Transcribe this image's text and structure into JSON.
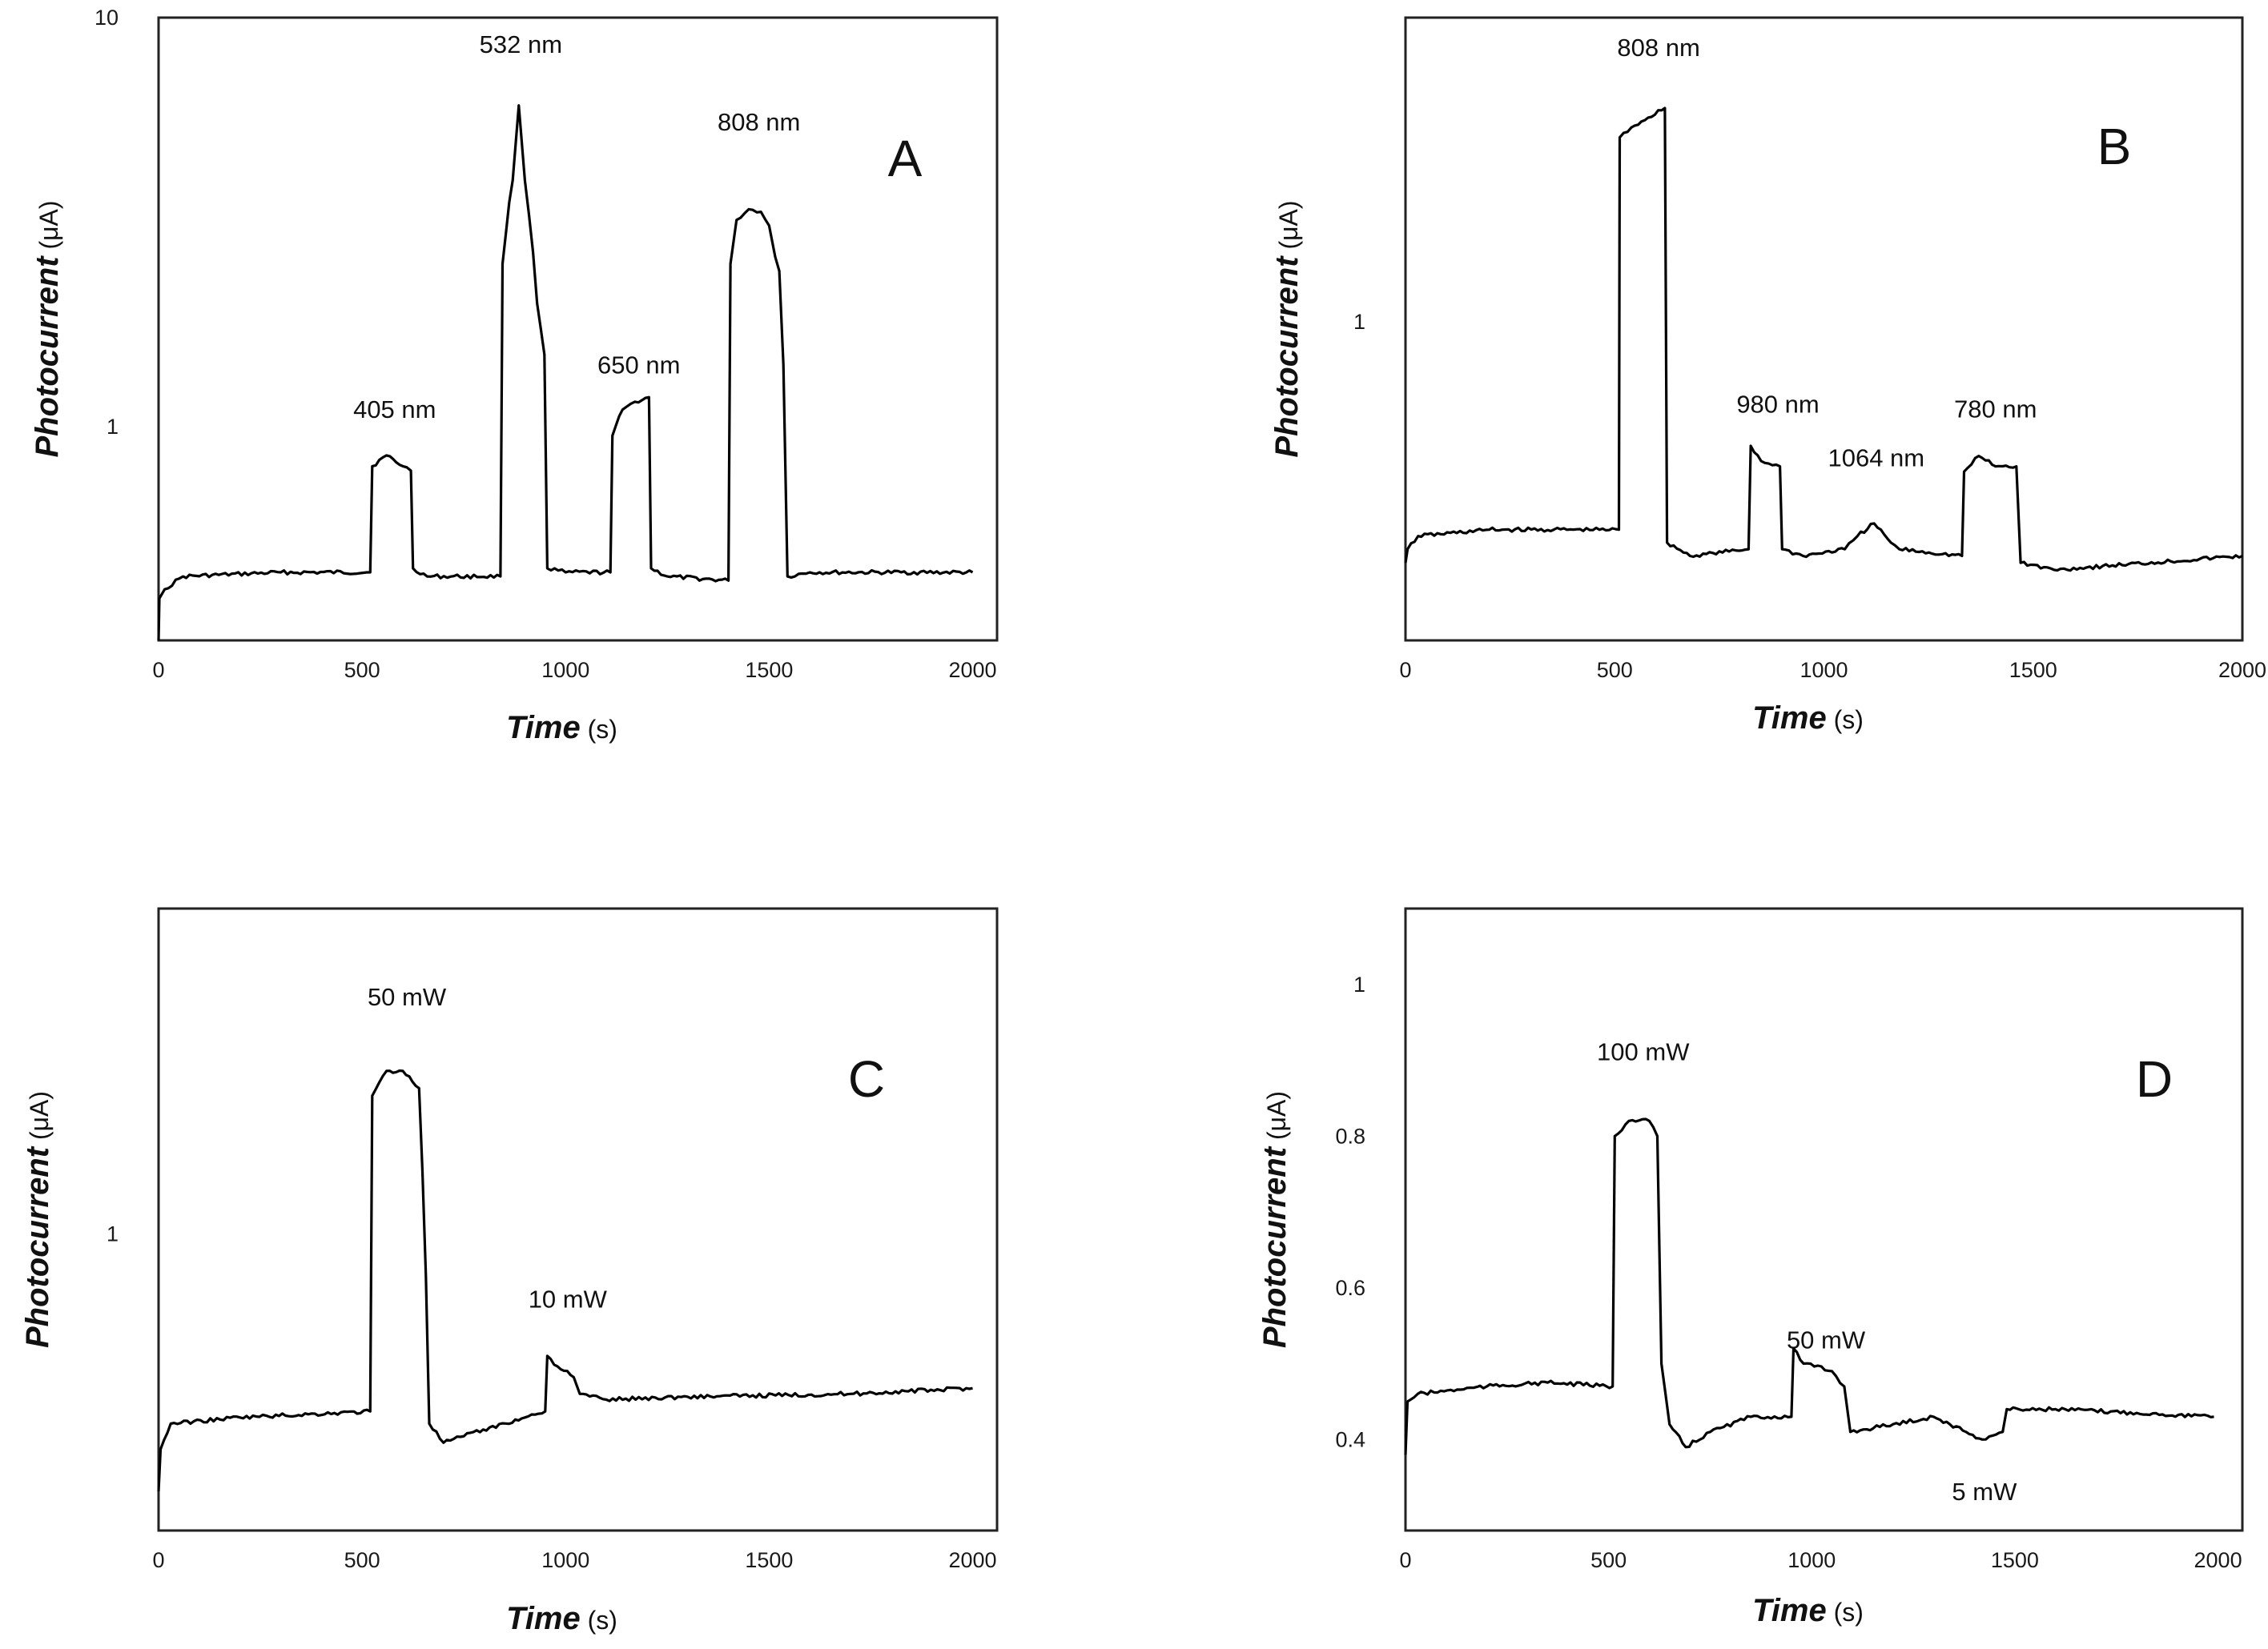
{
  "chart_data": [
    {
      "id": "A",
      "type": "line",
      "panel_label": "A",
      "xlabel": {
        "main": "Time",
        "unit": " (s)"
      },
      "ylabel": {
        "main": "Photocurrent",
        "unit": " (μA)"
      },
      "yscale": "log",
      "xlim": [
        0,
        2060
      ],
      "ylim": [
        0.3,
        10
      ],
      "xticks": [
        0,
        500,
        1000,
        1500,
        2000
      ],
      "xtick_labels": [
        "0",
        "500",
        "1000",
        "1500",
        "2000"
      ],
      "yticks": [
        1,
        10
      ],
      "ytick_labels": [
        "1",
        "10"
      ],
      "annotations": [
        {
          "text": "405 nm",
          "x": 580,
          "y": 1.05
        },
        {
          "text": "532 nm",
          "x": 890,
          "y": 8.2
        },
        {
          "text": "650 nm",
          "x": 1180,
          "y": 1.35
        },
        {
          "text": "808 nm",
          "x": 1475,
          "y": 5.3
        }
      ],
      "series": [
        {
          "name": "photocurrent",
          "points": [
            [
              0,
              0.3
            ],
            [
              2,
              0.38
            ],
            [
              15,
              0.4
            ],
            [
              60,
              0.43
            ],
            [
              300,
              0.44
            ],
            [
              520,
              0.44
            ],
            [
              525,
              0.8
            ],
            [
              560,
              0.85
            ],
            [
              600,
              0.8
            ],
            [
              620,
              0.78
            ],
            [
              625,
              0.45
            ],
            [
              660,
              0.43
            ],
            [
              840,
              0.43
            ],
            [
              845,
              2.5
            ],
            [
              870,
              4.0
            ],
            [
              885,
              6.1
            ],
            [
              900,
              4.0
            ],
            [
              930,
              2.0
            ],
            [
              948,
              1.5
            ],
            [
              955,
              0.45
            ],
            [
              1000,
              0.44
            ],
            [
              1110,
              0.44
            ],
            [
              1115,
              0.95
            ],
            [
              1140,
              1.1
            ],
            [
              1170,
              1.15
            ],
            [
              1205,
              1.18
            ],
            [
              1210,
              0.45
            ],
            [
              1250,
              0.43
            ],
            [
              1400,
              0.42
            ],
            [
              1405,
              2.5
            ],
            [
              1420,
              3.2
            ],
            [
              1450,
              3.4
            ],
            [
              1480,
              3.35
            ],
            [
              1500,
              3.1
            ],
            [
              1515,
              2.6
            ],
            [
              1525,
              2.4
            ],
            [
              1545,
              0.43
            ],
            [
              1600,
              0.44
            ],
            [
              2000,
              0.44
            ]
          ]
        }
      ]
    },
    {
      "id": "B",
      "type": "line",
      "panel_label": "B",
      "xlabel": {
        "main": "Time",
        "unit": " (s)"
      },
      "ylabel": {
        "main": "Photocurrent",
        "unit": " (μA)"
      },
      "yscale": "log",
      "xlim": [
        0,
        2000
      ],
      "ylim": [
        0.4,
        2.4
      ],
      "xticks": [
        0,
        500,
        1000,
        1500,
        2000
      ],
      "xtick_labels": [
        "0",
        "500",
        "1000",
        "1500",
        "2000"
      ],
      "yticks": [
        1
      ],
      "ytick_labels": [
        "1"
      ],
      "annotations": [
        {
          "text": "808 nm",
          "x": 605,
          "y": 2.15
        },
        {
          "text": "980 nm",
          "x": 890,
          "y": 0.77
        },
        {
          "text": "1064 nm",
          "x": 1125,
          "y": 0.66
        },
        {
          "text": "780 nm",
          "x": 1410,
          "y": 0.76
        }
      ],
      "series": [
        {
          "name": "photocurrent",
          "points": [
            [
              0,
              0.5
            ],
            [
              5,
              0.52
            ],
            [
              30,
              0.54
            ],
            [
              200,
              0.55
            ],
            [
              510,
              0.55
            ],
            [
              512,
              1.7
            ],
            [
              540,
              1.75
            ],
            [
              580,
              1.8
            ],
            [
              620,
              1.85
            ],
            [
              625,
              0.53
            ],
            [
              680,
              0.51
            ],
            [
              820,
              0.52
            ],
            [
              825,
              0.7
            ],
            [
              850,
              0.67
            ],
            [
              895,
              0.66
            ],
            [
              900,
              0.52
            ],
            [
              950,
              0.51
            ],
            [
              1050,
              0.52
            ],
            [
              1080,
              0.54
            ],
            [
              1120,
              0.56
            ],
            [
              1160,
              0.53
            ],
            [
              1180,
              0.52
            ],
            [
              1330,
              0.51
            ],
            [
              1335,
              0.65
            ],
            [
              1370,
              0.68
            ],
            [
              1410,
              0.66
            ],
            [
              1460,
              0.66
            ],
            [
              1470,
              0.5
            ],
            [
              1550,
              0.49
            ],
            [
              2000,
              0.51
            ]
          ]
        }
      ]
    },
    {
      "id": "C",
      "type": "line",
      "panel_label": "C",
      "xlabel": {
        "main": "Time",
        "unit": " (s)"
      },
      "ylabel": {
        "main": "Photocurrent",
        "unit": " (μA)"
      },
      "yscale": "log",
      "xlim": [
        0,
        2060
      ],
      "ylim": [
        0.45,
        2.4
      ],
      "xticks": [
        0,
        500,
        1000,
        1500,
        2000
      ],
      "xtick_labels": [
        "0",
        "500",
        "1000",
        "1500",
        "2000"
      ],
      "yticks": [
        1
      ],
      "ytick_labels": [
        "1"
      ],
      "annotations": [
        {
          "text": "50 mW",
          "x": 610,
          "y": 1.85
        },
        {
          "text": "10 mW",
          "x": 1005,
          "y": 0.82
        }
      ],
      "series": [
        {
          "name": "photocurrent",
          "points": [
            [
              0,
              0.5
            ],
            [
              5,
              0.56
            ],
            [
              30,
              0.6
            ],
            [
              200,
              0.61
            ],
            [
              520,
              0.62
            ],
            [
              525,
              1.45
            ],
            [
              560,
              1.55
            ],
            [
              600,
              1.55
            ],
            [
              640,
              1.48
            ],
            [
              665,
              0.6
            ],
            [
              700,
              0.57
            ],
            [
              750,
              0.58
            ],
            [
              900,
              0.61
            ],
            [
              950,
              0.62
            ],
            [
              955,
              0.72
            ],
            [
              980,
              0.7
            ],
            [
              1020,
              0.68
            ],
            [
              1035,
              0.65
            ],
            [
              1100,
              0.64
            ],
            [
              1300,
              0.645
            ],
            [
              1700,
              0.65
            ],
            [
              2000,
              0.66
            ]
          ]
        }
      ]
    },
    {
      "id": "D",
      "type": "line",
      "panel_label": "D",
      "xlabel": {
        "main": "Time",
        "unit": " (s)"
      },
      "ylabel": {
        "main": "Photocurrent",
        "unit": " (μA)"
      },
      "yscale": "linear",
      "xlim": [
        0,
        2060
      ],
      "ylim": [
        0.28,
        1.1
      ],
      "xticks": [
        0,
        500,
        1000,
        1500,
        2000
      ],
      "xtick_labels": [
        "0",
        "500",
        "1000",
        "1500",
        "2000"
      ],
      "yticks": [
        0.4,
        0.6,
        0.8,
        1
      ],
      "ytick_labels": [
        "0.4",
        "0.6",
        "0.8",
        "1"
      ],
      "annotations": [
        {
          "text": "100 mW",
          "x": 585,
          "y": 0.9
        },
        {
          "text": "50 mW",
          "x": 1035,
          "y": 0.52
        },
        {
          "text": "5 mW",
          "x": 1425,
          "y": 0.32
        }
      ],
      "series": [
        {
          "name": "photocurrent",
          "points": [
            [
              0,
              0.38
            ],
            [
              5,
              0.45
            ],
            [
              30,
              0.46
            ],
            [
              200,
              0.47
            ],
            [
              350,
              0.475
            ],
            [
              510,
              0.47
            ],
            [
              515,
              0.8
            ],
            [
              550,
              0.82
            ],
            [
              600,
              0.82
            ],
            [
              620,
              0.8
            ],
            [
              630,
              0.5
            ],
            [
              650,
              0.42
            ],
            [
              690,
              0.39
            ],
            [
              750,
              0.41
            ],
            [
              850,
              0.43
            ],
            [
              950,
              0.43
            ],
            [
              955,
              0.52
            ],
            [
              980,
              0.5
            ],
            [
              1050,
              0.49
            ],
            [
              1080,
              0.47
            ],
            [
              1095,
              0.41
            ],
            [
              1200,
              0.42
            ],
            [
              1300,
              0.43
            ],
            [
              1340,
              0.42
            ],
            [
              1380,
              0.41
            ],
            [
              1420,
              0.4
            ],
            [
              1470,
              0.41
            ],
            [
              1480,
              0.44
            ],
            [
              1600,
              0.44
            ],
            [
              1800,
              0.435
            ],
            [
              1990,
              0.43
            ]
          ]
        }
      ]
    }
  ]
}
